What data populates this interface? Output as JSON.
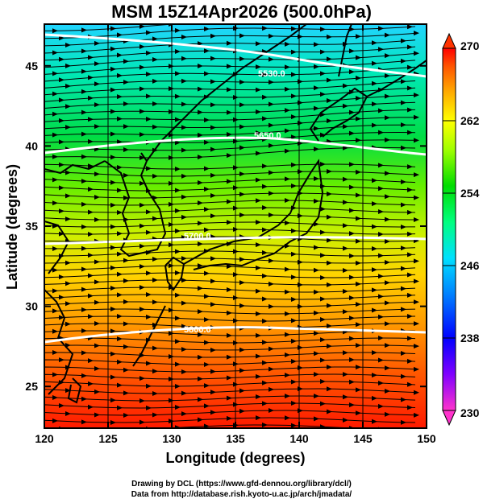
{
  "title": "MSM 15Z14Apr2026 (500.0hPa)",
  "xaxis": {
    "label": "Longitude (degrees)",
    "range": [
      120,
      150
    ],
    "ticks": [
      "120",
      "125",
      "130",
      "135",
      "140",
      "145",
      "150"
    ]
  },
  "yaxis": {
    "label": "Latitude  (degrees)",
    "range": [
      22.4,
      47.6
    ],
    "ticks": [
      "25",
      "30",
      "35",
      "40",
      "45"
    ]
  },
  "colorbar": {
    "range": [
      230,
      270
    ],
    "ticks": [
      "230",
      "238",
      "246",
      "254",
      "262",
      "270"
    ],
    "colors": [
      "#ff33cc",
      "#8000ff",
      "#0000ff",
      "#0080ff",
      "#00e0ff",
      "#00ff80",
      "#00dd00",
      "#a0ff00",
      "#ffff00",
      "#ffaa00",
      "#ff5500",
      "#ff0000"
    ]
  },
  "contours": [
    {
      "value": 5530,
      "label": "5530.0"
    },
    {
      "value": 5650,
      "label": "5650.0"
    },
    {
      "value": 5700,
      "label": "5700.0"
    },
    {
      "value": 5800,
      "label": "5800.0"
    }
  ],
  "credits": {
    "line1": "Drawing by DCL (https://www.gfd-dennou.org/library/dcl/)",
    "line2": "Data from http://database.rish.kyoto-u.ac.jp/arch/jmadata/"
  }
}
